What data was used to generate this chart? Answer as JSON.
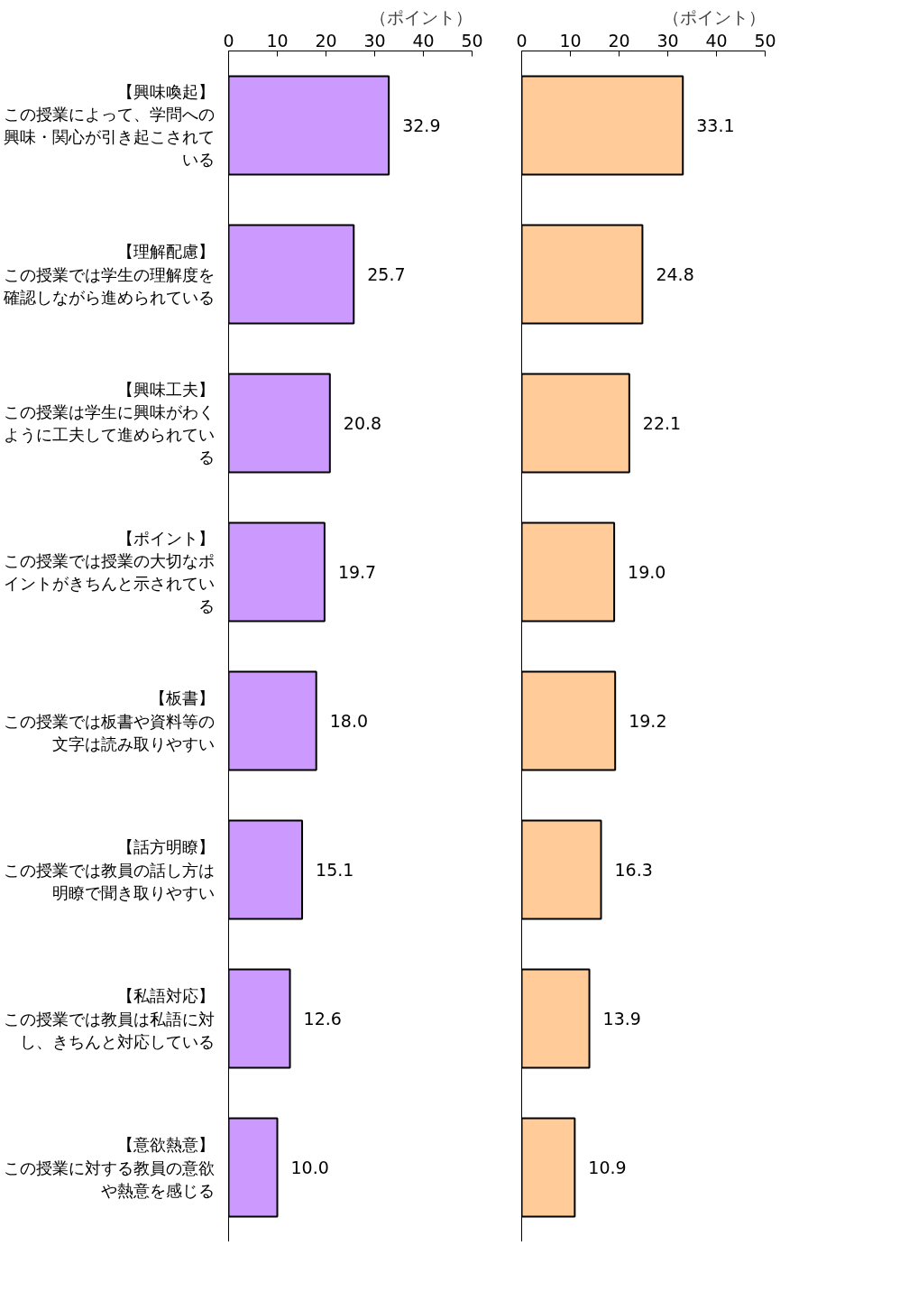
{
  "chart_data": [
    {
      "type": "bar",
      "orientation": "horizontal",
      "xlabel": "（ポイント）",
      "categories": [
        "【興味喚起】この授業によって、学問への興味・関心が引き起こされている",
        "【理解配慮】この授業では学生の理解度を確認しながら進められている",
        "【興味工夫】この授業は学生に興味がわくように工夫して進められている",
        "【ポイント】この授業では授業の大切なポイントがきちんと示されている",
        "【板書】この授業では板書や資料等の文字は読み取りやすい",
        "【話方明瞭】この授業では教員の話し方は明瞭で聞き取りやすい",
        "【私語対応】この授業では教員は私語に対し、きちんと対応している",
        "【意欲熱意】この授業に対する教員の意欲や熱意を感じる"
      ],
      "values": [
        32.9,
        25.7,
        20.8,
        19.7,
        18.0,
        15.1,
        12.6,
        10.0
      ],
      "color": "#cc99ff",
      "value_labels": [
        "32.9",
        "25.7",
        "20.8",
        "19.7",
        "18.0",
        "15.1",
        "12.6",
        "10.0"
      ],
      "xlim": [
        0,
        50
      ],
      "xticks": [
        0,
        10,
        20,
        30,
        40,
        50
      ]
    },
    {
      "type": "bar",
      "orientation": "horizontal",
      "xlabel": "（ポイント）",
      "categories": [
        "【興味喚起】この授業によって、学問への興味・関心が引き起こされている",
        "【理解配慮】この授業では学生の理解度を確認しながら進められている",
        "【興味工夫】この授業は学生に興味がわくように工夫して進められている",
        "【ポイント】この授業では授業の大切なポイントがきちんと示されている",
        "【板書】この授業では板書や資料等の文字は読み取りやすい",
        "【話方明瞭】この授業では教員の話し方は明瞭で聞き取りやすい",
        "【私語対応】この授業では教員は私語に対し、きちんと対応している",
        "【意欲熱意】この授業に対する教員の意欲や熱意を感じる"
      ],
      "values": [
        33.1,
        24.8,
        22.1,
        19.0,
        19.2,
        16.3,
        13.9,
        10.9
      ],
      "color": "#ffcc99",
      "value_labels": [
        "33.1",
        "24.8",
        "22.1",
        "19.0",
        "19.2",
        "16.3",
        "13.9",
        "10.9"
      ],
      "xlim": [
        0,
        50
      ],
      "xticks": [
        0,
        10,
        20,
        30,
        40,
        50
      ],
      "tick_labels": "x"
    }
  ]
}
